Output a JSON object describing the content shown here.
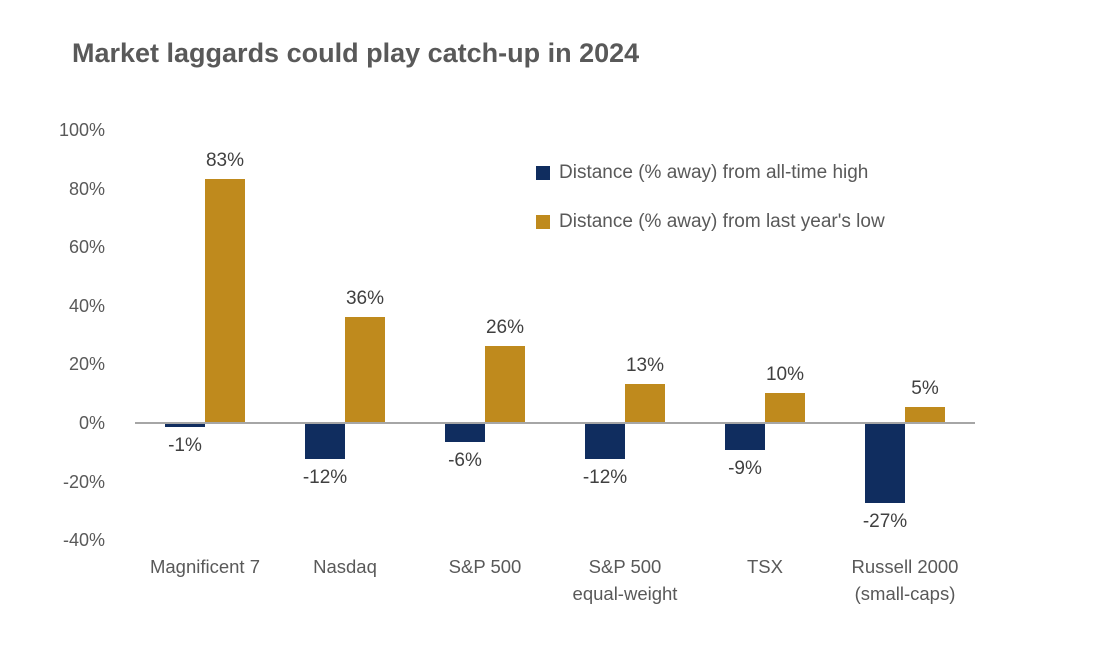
{
  "title": "Market laggards could play catch-up in 2024",
  "colors": {
    "background": "#FFFFFF",
    "series_high": "#102D5F",
    "series_low": "#BF8A1D",
    "title_text": "#595959",
    "axis_text": "#595959",
    "value_label_text": "#404040",
    "axis_line": "#A6A6A6"
  },
  "legend": {
    "items": [
      {
        "label": "Distance (% away) from all-time high",
        "color": "#102D5F"
      },
      {
        "label": "Distance (% away) from last year's low",
        "color": "#BF8A1D"
      }
    ]
  },
  "chart_data": {
    "type": "bar",
    "title": "Market laggards could play catch-up in 2024",
    "categories": [
      "Magnificent 7",
      "Nasdaq",
      "S&P 500",
      "S&P 500\nequal-weight",
      "TSX",
      "Russell 2000\n(small-caps)"
    ],
    "series": [
      {
        "name": "Distance (% away) from all-time high",
        "color": "#102D5F",
        "values": [
          -1,
          -12,
          -6,
          -12,
          -9,
          -27
        ],
        "labels": [
          "-1%",
          "-12%",
          "-6%",
          "-12%",
          "-9%",
          "-27%"
        ]
      },
      {
        "name": "Distance (% away) from last year's low",
        "color": "#BF8A1D",
        "values": [
          83,
          36,
          26,
          13,
          10,
          5
        ],
        "labels": [
          "83%",
          "36%",
          "26%",
          "13%",
          "10%",
          "5%"
        ]
      }
    ],
    "ylim": [
      -40,
      100
    ],
    "yticks": [
      100,
      80,
      60,
      40,
      20,
      0,
      -20,
      -40
    ],
    "ytick_labels": [
      "100%",
      "80%",
      "60%",
      "40%",
      "20%",
      "0%",
      "-20%",
      "-40%"
    ],
    "grid": false,
    "legend_position": "upper-right-inside",
    "xlabel": "",
    "ylabel": ""
  }
}
